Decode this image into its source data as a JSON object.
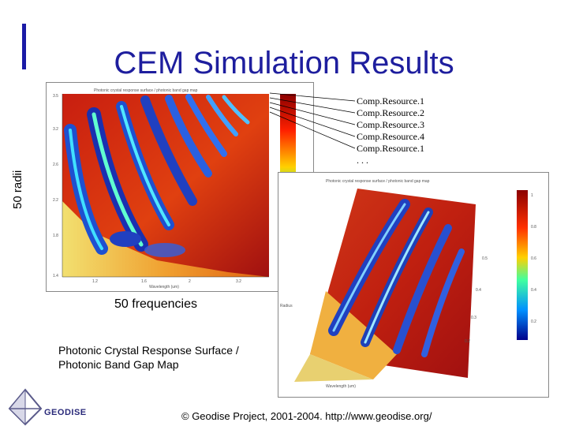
{
  "slide": {
    "title": "CEM Simulation Results",
    "y_label": "50 radii",
    "x_label": "50 frequencies",
    "caption": "Photonic Crystal Response Surface /\nPhotonic Band Gap Map",
    "resources": [
      "Comp.Resource.1",
      "Comp.Resource.2",
      "Comp.Resource.3",
      "Comp.Resource.4",
      "Comp.Resource.1",
      ". . ."
    ],
    "footer": "© Geodise Project, 2001-2004. http://www.geodise.org/",
    "logo_text": "GEODISE"
  },
  "colors": {
    "title": "#1e1e9e",
    "accent": "#1a1aa6",
    "heat_low": "#1a1aa6",
    "heat_high": "#b01818"
  },
  "icons": {
    "logo": "geodise-pyramid-logo-icon"
  }
}
